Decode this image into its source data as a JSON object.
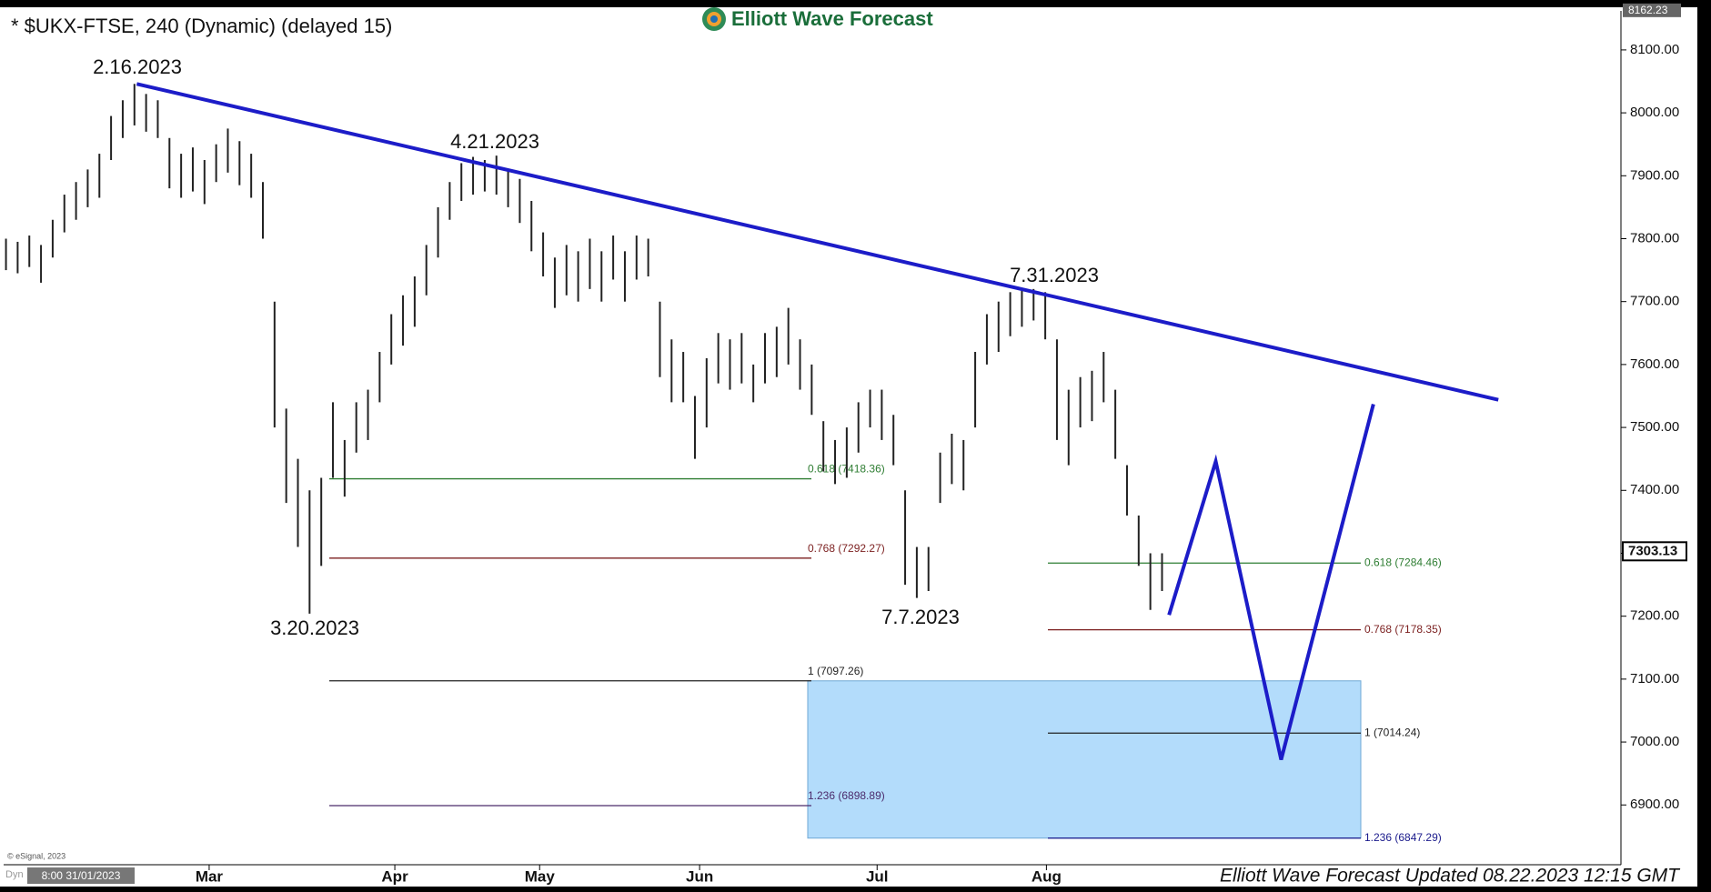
{
  "chart_data": {
    "type": "ohlc",
    "title": "* $UKX-FTSE, 240 (Dynamic) (delayed 15)",
    "logo": "Elliott Wave Forecast",
    "footer": "Elliott Wave Forecast Updated 08.22.2023 12:15 GMT",
    "credit": "© eSignal, 2023",
    "corner_label": "Dyn",
    "start_label": "8:00 31/01/2023",
    "color": "#222222",
    "high": [
      7800,
      7795,
      7805,
      7790,
      7830,
      7870,
      7890,
      7910,
      7935,
      7995,
      8020,
      8046,
      8030,
      8020,
      7960,
      7935,
      7945,
      7925,
      7950,
      7975,
      7955,
      7935,
      7890,
      7700,
      7530,
      7450,
      7400,
      7420,
      7540,
      7480,
      7540,
      7560,
      7620,
      7680,
      7710,
      7740,
      7790,
      7850,
      7890,
      7920,
      7930,
      7925,
      7932,
      7910,
      7895,
      7860,
      7810,
      7770,
      7790,
      7780,
      7800,
      7780,
      7805,
      7780,
      7805,
      7800,
      7700,
      7640,
      7620,
      7550,
      7610,
      7650,
      7640,
      7650,
      7600,
      7650,
      7660,
      7690,
      7640,
      7600,
      7510,
      7480,
      7500,
      7540,
      7560,
      7560,
      7520,
      7400,
      7310,
      7310,
      7460,
      7490,
      7480,
      7620,
      7680,
      7700,
      7715,
      7720,
      7720,
      7715,
      7640,
      7560,
      7580,
      7590,
      7620,
      7560,
      7440,
      7360,
      7300,
      7300
    ],
    "low": [
      7750,
      7745,
      7755,
      7730,
      7770,
      7810,
      7830,
      7850,
      7865,
      7925,
      7960,
      7980,
      7970,
      7960,
      7880,
      7865,
      7875,
      7855,
      7890,
      7905,
      7885,
      7865,
      7800,
      7500,
      7380,
      7310,
      7204,
      7280,
      7420,
      7390,
      7460,
      7480,
      7540,
      7600,
      7630,
      7660,
      7710,
      7770,
      7830,
      7860,
      7870,
      7875,
      7870,
      7850,
      7825,
      7780,
      7740,
      7690,
      7710,
      7700,
      7720,
      7700,
      7735,
      7700,
      7735,
      7740,
      7580,
      7540,
      7540,
      7450,
      7500,
      7570,
      7560,
      7570,
      7540,
      7570,
      7580,
      7600,
      7560,
      7520,
      7430,
      7410,
      7420,
      7460,
      7500,
      7480,
      7440,
      7250,
      7229,
      7240,
      7380,
      7410,
      7400,
      7500,
      7600,
      7620,
      7645,
      7660,
      7670,
      7640,
      7480,
      7440,
      7500,
      7510,
      7540,
      7450,
      7360,
      7280,
      7210,
      7240
    ],
    "xlim": [
      -0.2,
      138.3
    ],
    "xticks": [
      {
        "value": 17.4,
        "label": "Mar"
      },
      {
        "value": 33.3,
        "label": "Apr"
      },
      {
        "value": 45.7,
        "label": "May"
      },
      {
        "value": 59.4,
        "label": "Jun"
      },
      {
        "value": 74.6,
        "label": "Jul"
      },
      {
        "value": 89.1,
        "label": "Aug"
      }
    ],
    "ylim": [
      6805,
      8162
    ],
    "yticks": [
      {
        "value": 6900,
        "label": "6900.00"
      },
      {
        "value": 7000,
        "label": "7000.00"
      },
      {
        "value": 7100,
        "label": "7100.00"
      },
      {
        "value": 7200,
        "label": "7200.00"
      },
      {
        "value": 7300,
        "label": "7300.00"
      },
      {
        "value": 7400,
        "label": "7400.00"
      },
      {
        "value": 7500,
        "label": "7500.00"
      },
      {
        "value": 7600,
        "label": "7600.00"
      },
      {
        "value": 7700,
        "label": "7700.00"
      },
      {
        "value": 7800,
        "label": "7800.00"
      },
      {
        "value": 7900,
        "label": "7900.00"
      },
      {
        "value": 8000,
        "label": "8000.00"
      },
      {
        "value": 8100,
        "label": "8100.00"
      }
    ],
    "top_price": {
      "value": 8162.23,
      "label": "8162.23"
    },
    "last_price": {
      "value": 7303.13,
      "label": "7303.13"
    },
    "trendline": {
      "x": [
        11.2,
        127.8
      ],
      "y": [
        8046,
        7544
      ],
      "color": "#1c1cc8"
    },
    "projection": {
      "x": [
        99.6,
        103.6,
        109.2,
        117.1
      ],
      "y": [
        7202,
        7446,
        6972,
        7537
      ],
      "color": "#1c1cc8"
    },
    "fib_sets": [
      {
        "levels": [
          {
            "value": 7418.36,
            "label": "0.618 (7418.36)",
            "color": "#2e7d32"
          },
          {
            "value": 7292.27,
            "label": "0.768 (7292.27)",
            "color": "#7b1f1f"
          },
          {
            "value": 7097.26,
            "label": "1 (7097.26)",
            "color": "#222222"
          },
          {
            "value": 6898.89,
            "label": "1.236 (6898.89)",
            "color": "#4b2a6b"
          }
        ]
      },
      {
        "levels": [
          {
            "value": 7284.46,
            "label": "0.618 (7284.46)",
            "color": "#2e7d32"
          },
          {
            "value": 7178.35,
            "label": "0.768 (7178.35)",
            "color": "#7b1f1f"
          },
          {
            "value": 7014.24,
            "label": "1 (7014.24)",
            "color": "#222222"
          },
          {
            "value": 6847.29,
            "label": "1.236 (6847.29)",
            "color": "#1a1a8c"
          }
        ]
      }
    ],
    "zone_color": "#b3dcfb",
    "annotations": [
      "2.16.2023",
      "4.21.2023",
      "7.31.2023",
      "3.20.2023",
      "7.7.2023"
    ]
  }
}
